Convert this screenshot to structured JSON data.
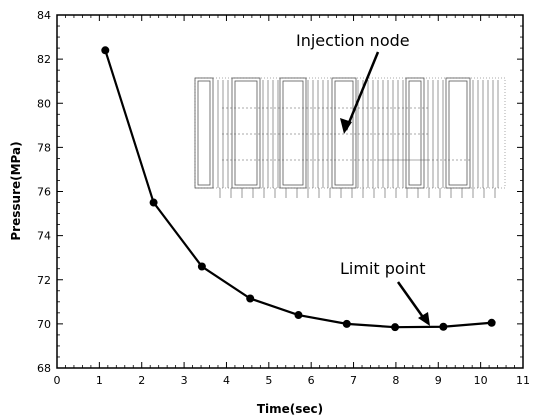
{
  "chart_data": {
    "type": "line",
    "xlabel": "Time(sec)",
    "ylabel": "Pressure(MPa)",
    "xlim": [
      0,
      11
    ],
    "ylim": [
      68,
      84
    ],
    "x_ticks": [
      "0",
      "1",
      "2",
      "3",
      "4",
      "5",
      "6",
      "7",
      "8",
      "9",
      "10",
      "11"
    ],
    "y_ticks": [
      "68",
      "70",
      "72",
      "74",
      "76",
      "78",
      "80",
      "82",
      "84"
    ],
    "series": [
      {
        "x": [
          1.14,
          2.28,
          3.42,
          4.56,
          5.7,
          6.84,
          7.98,
          9.12,
          10.26
        ],
        "values": [
          82.4,
          75.5,
          72.6,
          71.15,
          70.4,
          70.0,
          69.85,
          69.87,
          70.05
        ],
        "color": "#000000"
      }
    ],
    "annotations": [
      {
        "text": "Injection node",
        "x": 8.2,
        "y": 82.3
      },
      {
        "text": "Limit point",
        "x": 7.5,
        "y": 71.7
      }
    ],
    "grid": false,
    "legend": "none"
  }
}
